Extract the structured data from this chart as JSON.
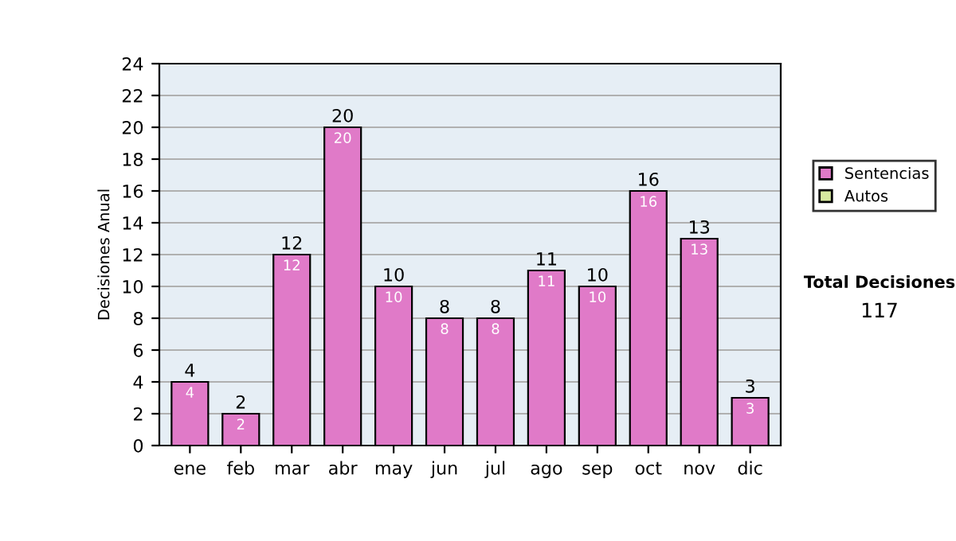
{
  "chart_data": {
    "type": "bar",
    "stacked": true,
    "ylabel": "Decisiones Anual",
    "categories": [
      "ene",
      "feb",
      "mar",
      "abr",
      "may",
      "jun",
      "jul",
      "ago",
      "sep",
      "oct",
      "nov",
      "dic"
    ],
    "series": [
      {
        "name": "Sentencias",
        "color": "#e07ac8",
        "values": [
          4,
          2,
          12,
          20,
          10,
          8,
          8,
          11,
          10,
          16,
          13,
          3
        ],
        "value_labels": [
          "4",
          "2",
          "12",
          "20",
          "10",
          "8",
          "8",
          "11",
          "10",
          "16",
          "13",
          "3"
        ]
      },
      {
        "name": "Autos",
        "color": "#d8eaa0",
        "values": [
          null,
          null,
          null,
          null,
          null,
          null,
          null,
          null,
          null,
          null,
          null,
          null
        ]
      }
    ],
    "totals": [
      "4",
      "2",
      "12",
      "20",
      "10",
      "8",
      "8",
      "11",
      "10",
      "16",
      "13",
      "3"
    ],
    "ylim": [
      0,
      24
    ],
    "yticks": [
      0,
      2,
      4,
      6,
      8,
      10,
      12,
      14,
      16,
      18,
      20,
      22,
      24
    ],
    "grid": "y",
    "legend": "right",
    "annotations": [
      "Total Decisiones",
      "117"
    ]
  }
}
